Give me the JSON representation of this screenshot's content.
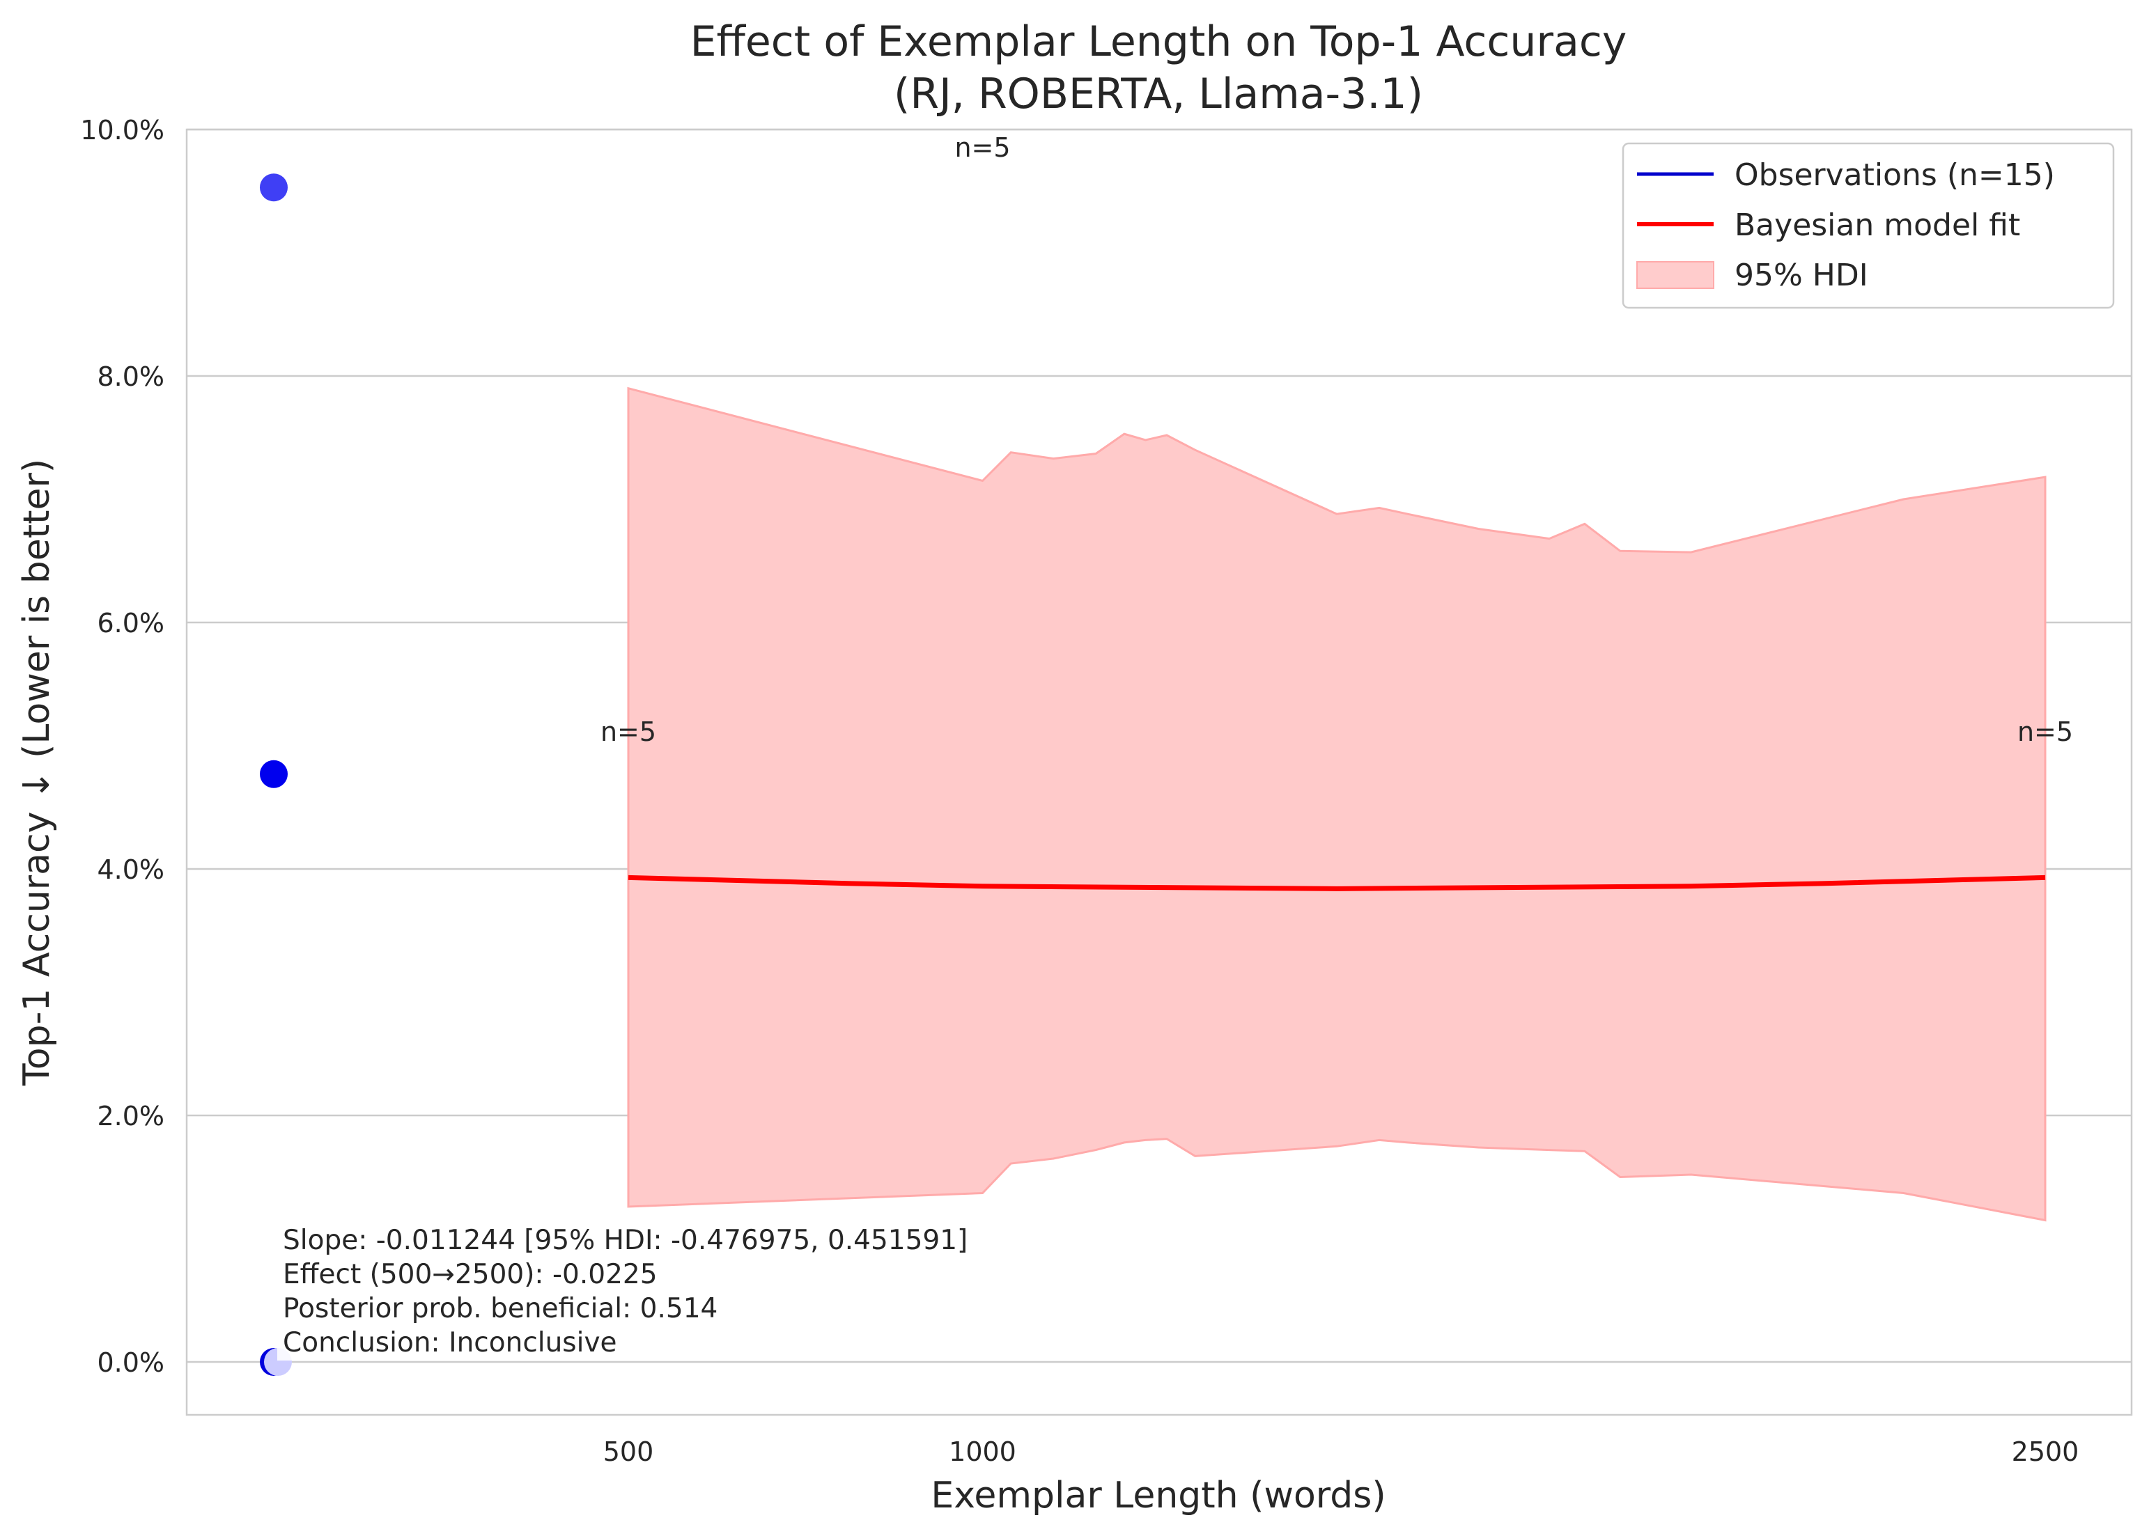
{
  "chart_data": {
    "type": "scatter",
    "title": "Effect of Exemplar Length on Top-1 Accuracy",
    "subtitle": "(RJ, ROBERTA, Llama-3.1)",
    "xlabel": "Exemplar Length (words)",
    "ylabel": "Top-1 Accuracy ↓ (Lower is better)",
    "x_ticks": [
      500,
      1000,
      2500
    ],
    "y_ticks": [
      {
        "value": 0.0,
        "label": "0.0%"
      },
      {
        "value": 0.02,
        "label": "2.0%"
      },
      {
        "value": 0.04,
        "label": "4.0%"
      },
      {
        "value": 0.06,
        "label": "6.0%"
      },
      {
        "value": 0.08,
        "label": "8.0%"
      },
      {
        "value": 0.1,
        "label": "10.0%"
      }
    ],
    "ylim": [
      -0.0047,
      0.1
    ],
    "grid": "horizontal",
    "legend_position": "top-right",
    "legend": [
      {
        "label": "Observations (n=15)",
        "kind": "line",
        "color": "#0000cc"
      },
      {
        "label": "Bayesian model fit",
        "kind": "line",
        "color": "#ff0000"
      },
      {
        "label": "95% HDI",
        "kind": "patch",
        "color": "#ffcccc"
      }
    ],
    "observations": [
      {
        "y": 0.0953,
        "color": "#3f3ff5"
      },
      {
        "y": 0.0477,
        "color": "#0000ee"
      },
      {
        "y": 0.0,
        "color": "#0000dd"
      },
      {
        "y": 0.0,
        "color": "#ccccff"
      }
    ],
    "fit": {
      "x": [
        500,
        1000,
        1500,
        2000,
        2500
      ],
      "y": [
        0.0393,
        0.0386,
        0.0384,
        0.0386,
        0.0393
      ],
      "color": "#ff0000"
    },
    "hdi": {
      "x": [
        500,
        1000,
        1040,
        1100,
        1160,
        1200,
        1230,
        1260,
        1300,
        1500,
        1560,
        1600,
        1700,
        1800,
        1850,
        1900,
        2000,
        2300,
        2500
      ],
      "upper": [
        0.079,
        0.0715,
        0.0738,
        0.0733,
        0.0737,
        0.0753,
        0.0748,
        0.0752,
        0.074,
        0.0688,
        0.0693,
        0.0688,
        0.0676,
        0.0668,
        0.068,
        0.0658,
        0.0657,
        0.07,
        0.0718
      ],
      "lower": [
        0.0126,
        0.0137,
        0.0161,
        0.0165,
        0.0172,
        0.0178,
        0.018,
        0.0181,
        0.0167,
        0.0175,
        0.018,
        0.0178,
        0.0174,
        0.0172,
        0.0171,
        0.015,
        0.0152,
        0.0137,
        0.0115
      ],
      "color": "#ffcaca"
    },
    "group_labels": [
      {
        "x": 500,
        "y": 0.0504,
        "text": "n=5"
      },
      {
        "x": 1000,
        "y": 0.0978,
        "text": "n=5"
      },
      {
        "x": 2500,
        "y": 0.0504,
        "text": "n=5"
      }
    ],
    "annotation": [
      "Slope: -0.011244 [95% HDI: -0.476975, 0.451591]",
      "Effect (500→2500): -0.0225",
      "Posterior prob. beneficial: 0.514",
      "Conclusion: Inconclusive"
    ]
  }
}
